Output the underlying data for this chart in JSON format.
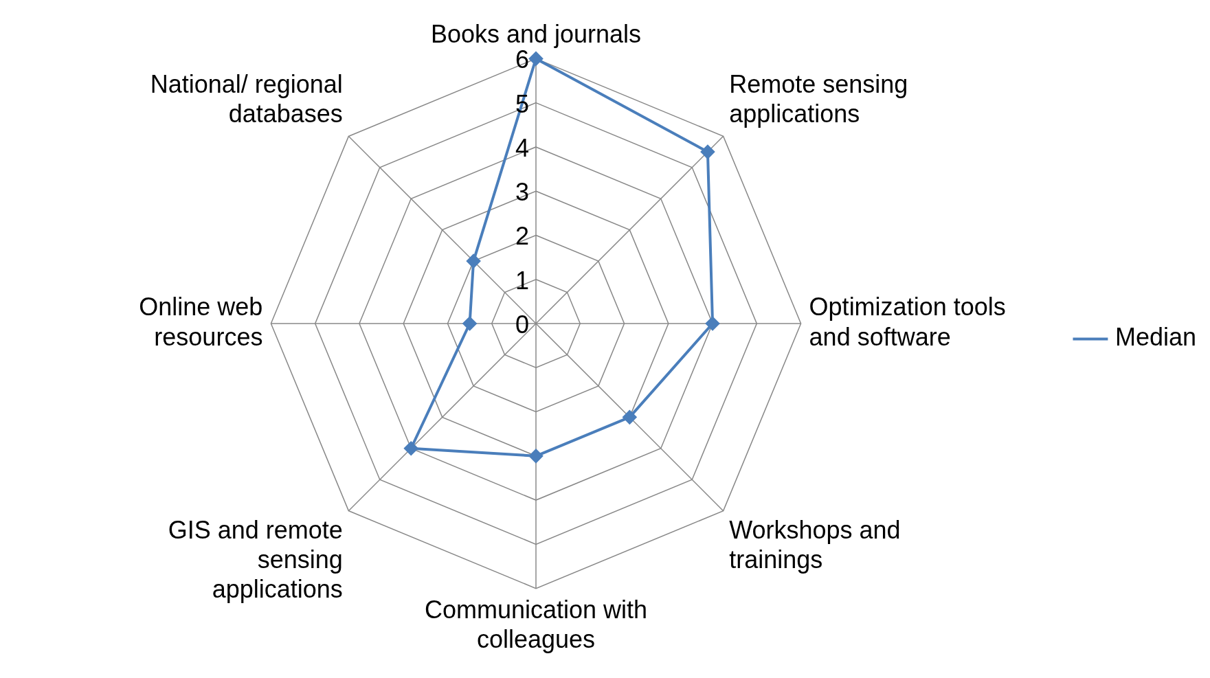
{
  "chart_data": {
    "type": "radar",
    "categories": [
      "Books and journals",
      "Remote sensing applications",
      "Optimization tools and software",
      "Workshops and trainings",
      "Communication with colleagues",
      "GIS and remote sensing applications",
      "Online web resources",
      "National/ regional databases"
    ],
    "series": [
      {
        "name": "Median",
        "color": "#4a7ebb",
        "values": [
          6,
          5.5,
          4,
          3,
          3,
          4,
          1.5,
          2
        ]
      }
    ],
    "ylim": [
      0,
      6
    ],
    "yticks": [
      0,
      1,
      2,
      3,
      4,
      5,
      6
    ],
    "grid": true,
    "legend": "right",
    "marker": "diamond",
    "line_style": "solid"
  }
}
